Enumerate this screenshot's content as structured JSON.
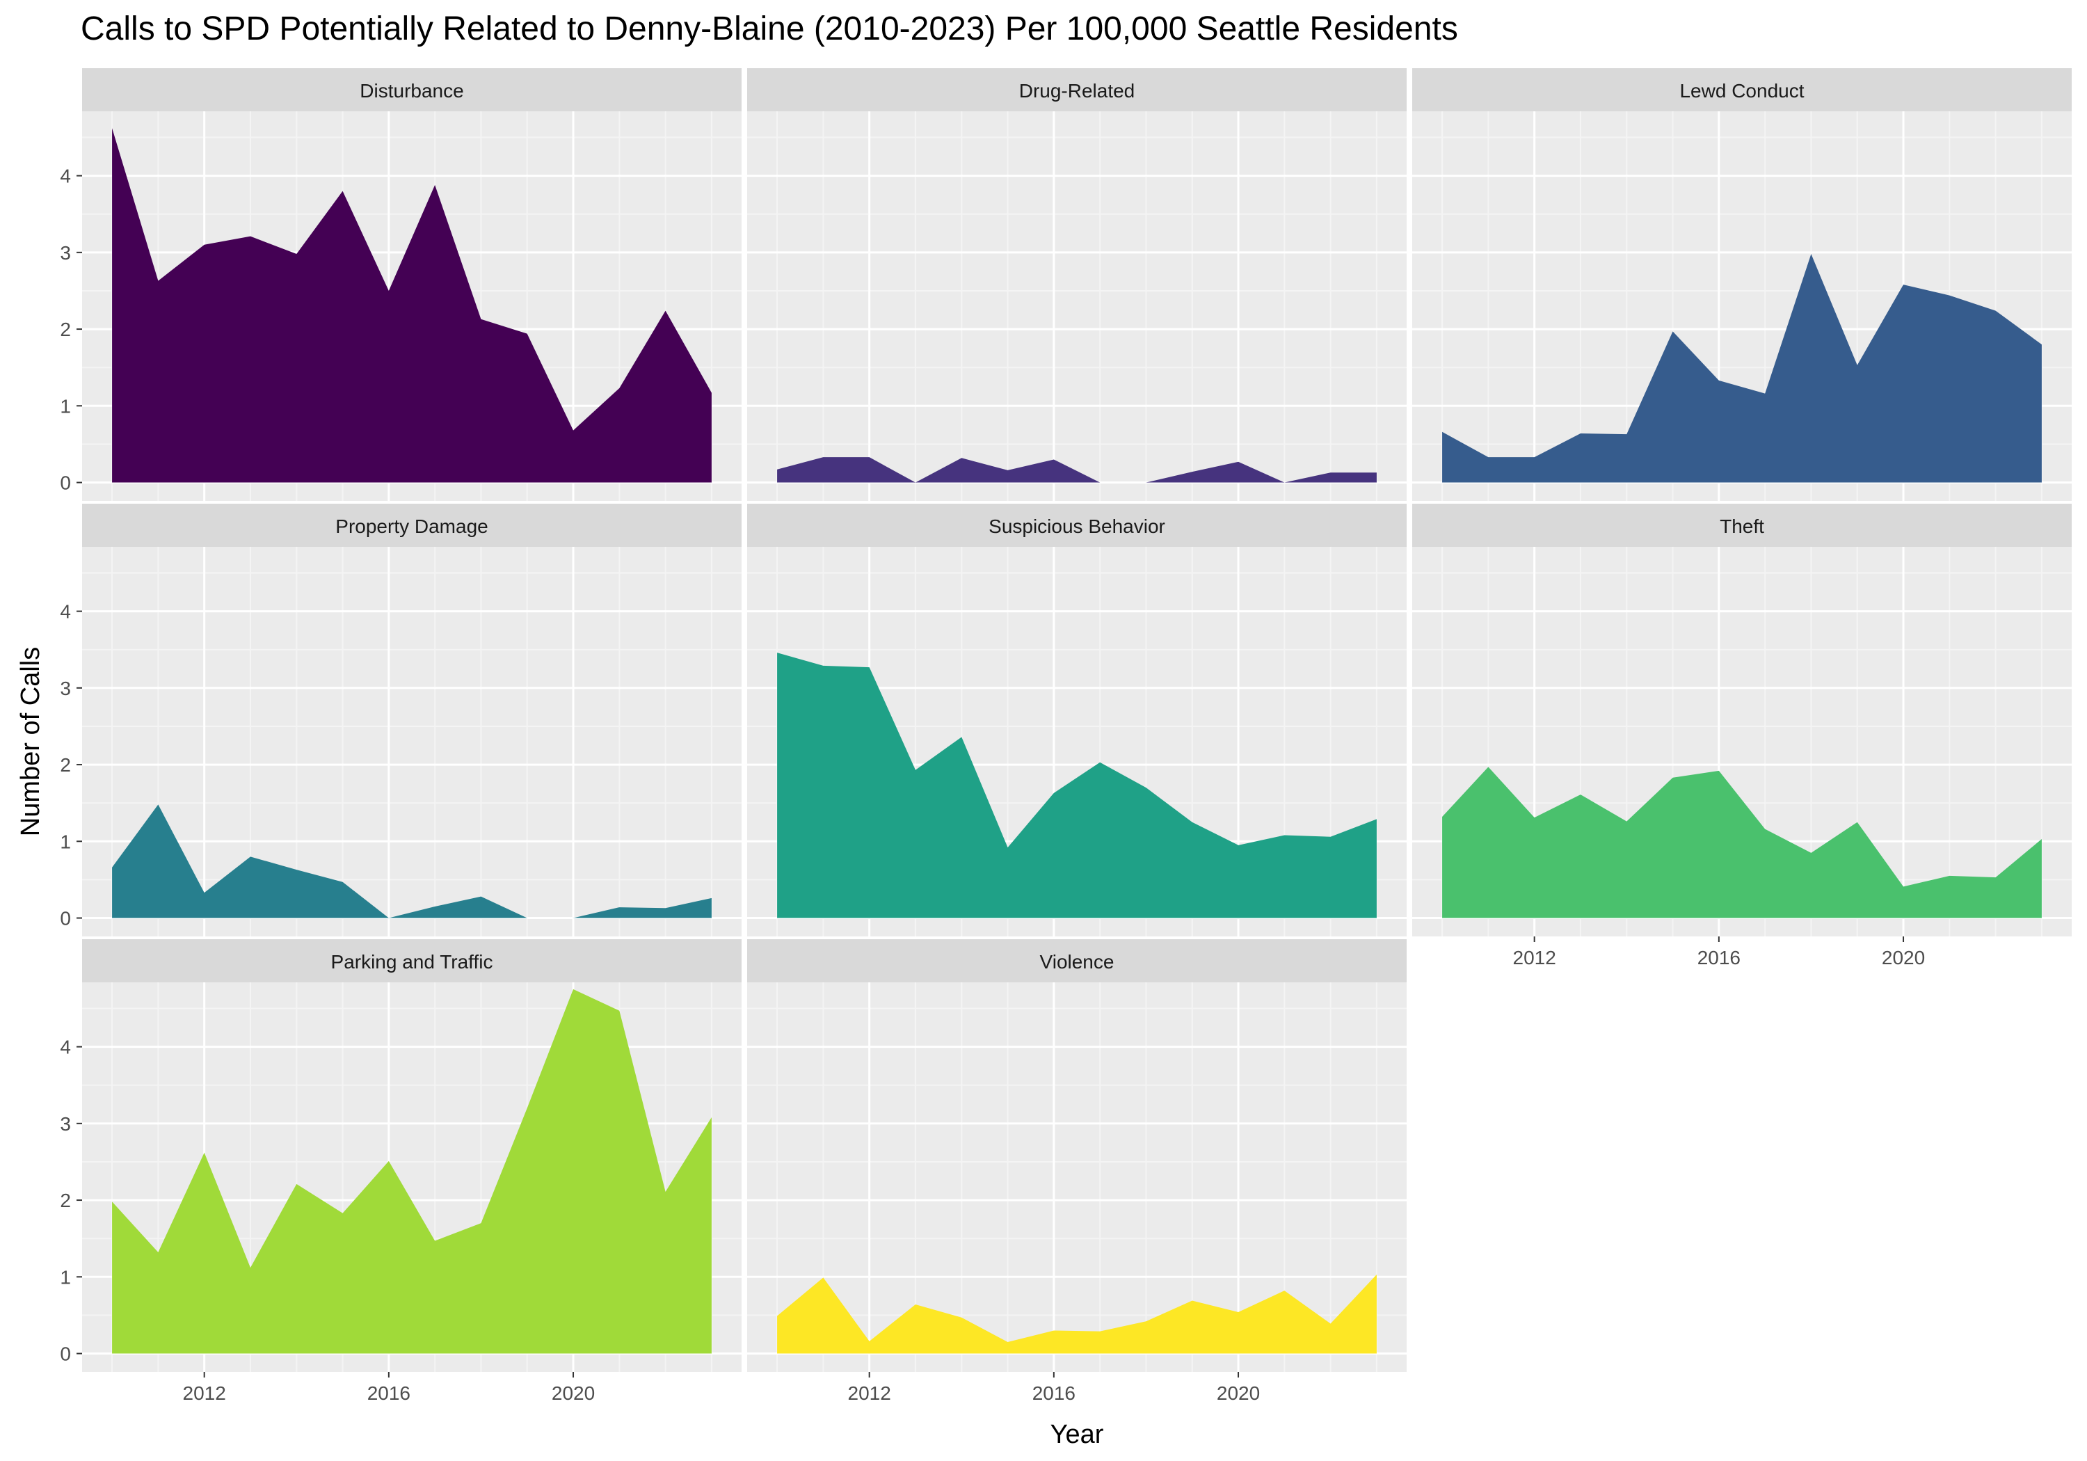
{
  "chart_data": {
    "type": "area",
    "title": "Calls to SPD Potentially Related to Denny-Blaine (2010-2023) Per 100,000 Seattle Residents",
    "xlabel": "Year",
    "ylabel": "Number of Calls",
    "x": [
      2010,
      2011,
      2012,
      2013,
      2014,
      2015,
      2016,
      2017,
      2018,
      2019,
      2020,
      2021,
      2022,
      2023
    ],
    "xticks": [
      2012,
      2016,
      2020
    ],
    "yticks": [
      0,
      1,
      2,
      3,
      4
    ],
    "xlim": [
      2009.35,
      2023.65
    ],
    "ylim": [
      -0.24,
      4.84
    ],
    "facet_layout": "3 columns x 3 rows",
    "grid": true,
    "legend": "none",
    "panels": [
      {
        "name": "Disturbance",
        "color": "#440154",
        "values": [
          4.62,
          2.63,
          3.1,
          3.21,
          2.98,
          3.8,
          2.5,
          3.88,
          2.13,
          1.94,
          0.68,
          1.23,
          2.24,
          1.17
        ]
      },
      {
        "name": "Drug-Related",
        "color": "#46337E",
        "values": [
          0.17,
          0.33,
          0.33,
          0.0,
          0.32,
          0.16,
          0.3,
          0.0,
          0.0,
          0.14,
          0.27,
          0.0,
          0.13,
          0.13
        ]
      },
      {
        "name": "Lewd Conduct",
        "color": "#365C8D",
        "values": [
          0.66,
          0.33,
          0.33,
          0.64,
          0.63,
          1.97,
          1.33,
          1.16,
          2.98,
          1.53,
          2.58,
          2.44,
          2.24,
          1.8
        ]
      },
      {
        "name": "Property Damage",
        "color": "#277F8E",
        "values": [
          0.66,
          1.48,
          0.33,
          0.8,
          0.63,
          0.47,
          0.0,
          0.15,
          0.28,
          0.0,
          0.0,
          0.14,
          0.13,
          0.26
        ]
      },
      {
        "name": "Suspicious Behavior",
        "color": "#1FA187",
        "values": [
          3.46,
          3.29,
          3.27,
          1.93,
          2.36,
          0.92,
          1.63,
          2.03,
          1.7,
          1.25,
          0.95,
          1.08,
          1.06,
          1.29
        ]
      },
      {
        "name": "Theft",
        "color": "#4AC16D",
        "values": [
          1.32,
          1.97,
          1.31,
          1.61,
          1.26,
          1.83,
          1.92,
          1.16,
          0.85,
          1.25,
          0.41,
          0.55,
          0.53,
          1.03
        ]
      },
      {
        "name": "Parking and Traffic",
        "color": "#A0DA39",
        "values": [
          1.98,
          1.32,
          2.62,
          1.12,
          2.21,
          1.83,
          2.51,
          1.47,
          1.7,
          3.2,
          4.75,
          4.47,
          2.11,
          3.08
        ]
      },
      {
        "name": "Violence",
        "color": "#FDE725",
        "values": [
          0.49,
          0.99,
          0.16,
          0.64,
          0.47,
          0.15,
          0.3,
          0.29,
          0.42,
          0.69,
          0.54,
          0.82,
          0.39,
          1.03
        ]
      }
    ]
  }
}
